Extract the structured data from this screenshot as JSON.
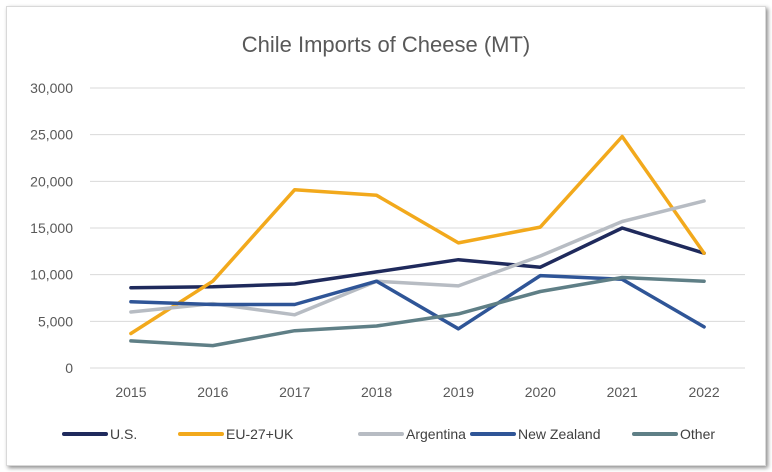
{
  "chart_data": {
    "type": "line",
    "title": "Chile Imports of Cheese (MT)",
    "xlabel": "",
    "ylabel": "",
    "categories": [
      "2015",
      "2016",
      "2017",
      "2018",
      "2019",
      "2020",
      "2021",
      "2022"
    ],
    "ylim": [
      0,
      30000
    ],
    "yticks": [
      "0",
      "5,000",
      "10,000",
      "15,000",
      "20,000",
      "25,000",
      "30,000"
    ],
    "grid": true,
    "legend_position": "bottom",
    "series": [
      {
        "name": "U.S.",
        "color": "#1f2a5c",
        "values": [
          8600,
          8700,
          9000,
          10300,
          11600,
          10800,
          15000,
          12300
        ]
      },
      {
        "name": "EU-27+UK",
        "color": "#f2a91c",
        "values": [
          3700,
          9300,
          19100,
          18500,
          13400,
          15100,
          24800,
          12300
        ]
      },
      {
        "name": "Argentina",
        "color": "#b7bcc3",
        "values": [
          6000,
          6900,
          5700,
          9300,
          8800,
          12000,
          15700,
          17900
        ]
      },
      {
        "name": "New Zealand",
        "color": "#2f5597",
        "values": [
          7100,
          6800,
          6800,
          9300,
          4200,
          9900,
          9500,
          4400
        ]
      },
      {
        "name": "Other",
        "color": "#5f7f86",
        "values": [
          2900,
          2400,
          4000,
          4500,
          5800,
          8200,
          9700,
          9300
        ]
      }
    ]
  }
}
